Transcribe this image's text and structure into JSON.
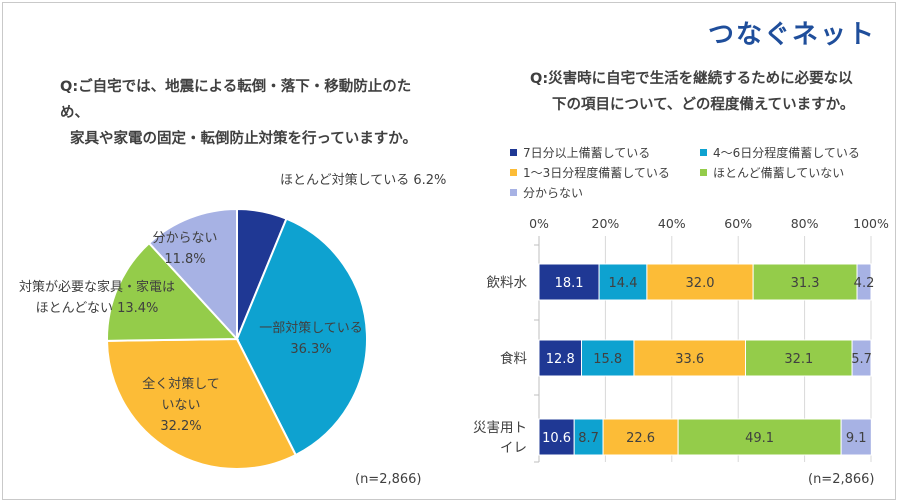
{
  "brand": {
    "logo_text": "つなぐネット",
    "accent_color": "#1f4e9b"
  },
  "left": {
    "question_line1": "Q:ご自宅では、地震による転倒・落下・移動防止のため、",
    "question_line2": "家具や家電の固定・転倒防止対策を行っていますか。",
    "n_note": "(n=2,866)"
  },
  "right": {
    "question_line1": "Q:災害時に自宅で生活を継続するために必要な以",
    "question_line2": "下の項目について、どの程度備えていますか。",
    "n_note": "(n=2,866)"
  },
  "chart_data": [
    {
      "type": "pie",
      "slices": [
        {
          "label": "ほとんど対策している",
          "value": 6.2,
          "display": "6.2%",
          "color": "#1f3894"
        },
        {
          "label": "一部対策している",
          "value": 36.3,
          "display": "36.3%",
          "color": "#0ea2d0"
        },
        {
          "label": "全く対策していない",
          "value": 32.2,
          "display": "32.2%",
          "color": "#fcbc37"
        },
        {
          "label": "対策が必要な家具・家電はほとんどない",
          "value": 13.4,
          "display": "13.4%",
          "color": "#94cc4a"
        },
        {
          "label": "分からない",
          "value": 11.8,
          "display": "11.8%",
          "color": "#a7b2e4"
        }
      ],
      "label_lines": {
        "s0": [
          "ほとんど対策している 6.2%"
        ],
        "s1": [
          "一部対策している",
          "36.3%"
        ],
        "s2": [
          "全く対策して",
          "いない",
          "32.2%"
        ],
        "s3": [
          "対策が必要な家具・家電は",
          "ほとんどない 13.4%"
        ],
        "s4": [
          "分からない",
          "11.8%"
        ]
      }
    },
    {
      "type": "bar",
      "orientation": "horizontal",
      "stacked": true,
      "categories": [
        "飲料水",
        "食料",
        "災害用トイレ"
      ],
      "category_lines": [
        [
          "飲料水"
        ],
        [
          "食料"
        ],
        [
          "災害用ト",
          "イレ"
        ]
      ],
      "xlim": [
        0,
        100
      ],
      "xticks": [
        "0%",
        "20%",
        "40%",
        "60%",
        "80%",
        "100%"
      ],
      "grid": true,
      "legend_position": "top",
      "series": [
        {
          "name": "7日分以上備蓄している",
          "values": [
            18.1,
            12.8,
            10.6
          ],
          "color": "#1f3894",
          "label_color": "#ffffff"
        },
        {
          "name": "4～6日分程度備蓄している",
          "values": [
            14.4,
            15.8,
            8.7
          ],
          "color": "#0ea2d0",
          "label_color": "#404040"
        },
        {
          "name": "1～3日分程度備蓄している",
          "values": [
            32.0,
            33.6,
            22.6
          ],
          "color": "#fcbc37",
          "label_color": "#404040"
        },
        {
          "name": "ほとんど備蓄していない",
          "values": [
            31.3,
            32.1,
            49.1
          ],
          "color": "#94cc4a",
          "label_color": "#404040"
        },
        {
          "name": "分からない",
          "values": [
            4.2,
            5.7,
            9.1
          ],
          "color": "#a7b2e4",
          "label_color": "#404040"
        }
      ]
    }
  ]
}
